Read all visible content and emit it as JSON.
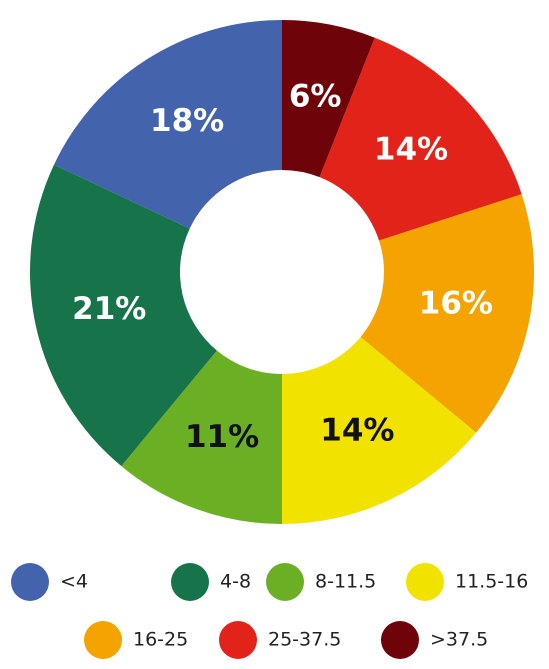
{
  "chart_data": {
    "type": "donut",
    "categories": [
      "<4",
      "4-8",
      "8-11.5",
      "11.5-16",
      "16-25",
      "25-37.5",
      ">37.5"
    ],
    "values": [
      18,
      21,
      11,
      14,
      16,
      14,
      6
    ],
    "value_labels": [
      "18%",
      "21%",
      "11%",
      "14%",
      "16%",
      "14%",
      "6%"
    ],
    "colors": [
      "#4463ad",
      "#17744a",
      "#6bb024",
      "#f2e200",
      "#f4a300",
      "#e2231a",
      "#6e0309"
    ],
    "label_colors": [
      "#ffffff",
      "#ffffff",
      "#111111",
      "#111111",
      "#ffffff",
      "#ffffff",
      "#ffffff"
    ],
    "legend": "bottom"
  }
}
